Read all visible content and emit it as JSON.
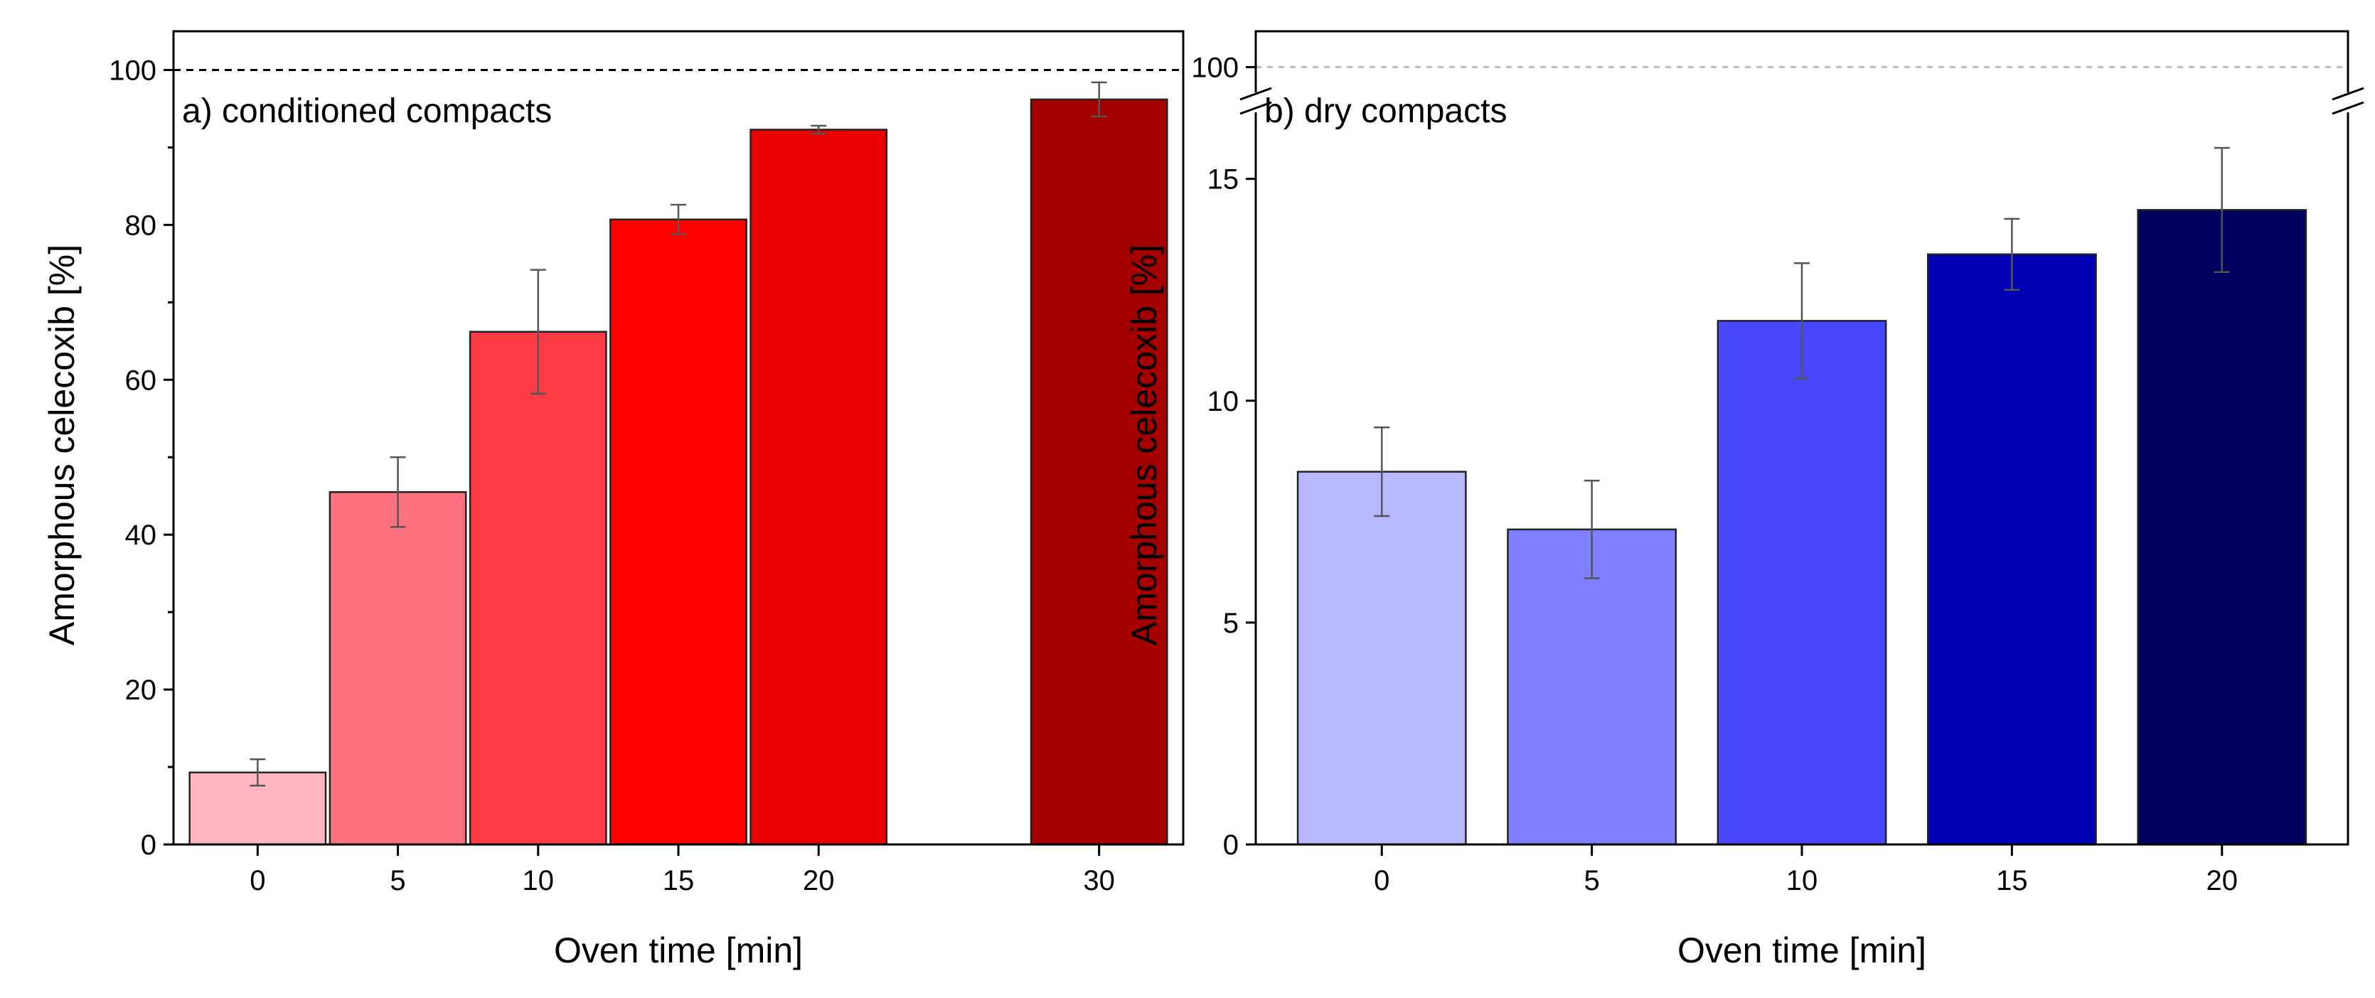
{
  "chart_data": [
    {
      "type": "bar",
      "panel_label": "a) conditioned compacts",
      "xlabel": "Oven time [min]",
      "ylabel": "Amorphous celecoxib [%]",
      "ylim": [
        0,
        105
      ],
      "yticks": [
        0,
        20,
        40,
        60,
        80,
        100
      ],
      "ytick_labels": [
        "0",
        "20",
        "40",
        "60",
        "80",
        "100"
      ],
      "categories": [
        "0",
        "5",
        "10",
        "15",
        "20",
        "30"
      ],
      "category_positions": [
        0,
        1,
        2,
        3,
        4,
        6
      ],
      "xlim": [
        -0.6,
        6.6
      ],
      "values": [
        9.3,
        45.5,
        66.2,
        80.7,
        92.3,
        96.2
      ],
      "errors": [
        1.7,
        4.5,
        8.0,
        1.9,
        0.5,
        2.2
      ],
      "colors": [
        "#ffb6c1",
        "#ff717f",
        "#ff3b45",
        "#ff0000",
        "#ea0000",
        "#a40000"
      ],
      "reference_line": 100
    },
    {
      "type": "bar",
      "panel_label": "b) dry compacts",
      "xlabel": "Oven time [min]",
      "ylabel": "Amorphous celecoxib [%]",
      "ylim": [
        0,
        16.5
      ],
      "broken_axis": true,
      "upper_segment_ylim": [
        99,
        101.5
      ],
      "yticks": [
        0,
        5,
        10,
        15
      ],
      "ytick_labels": [
        "0",
        "5",
        "10",
        "15"
      ],
      "upper_tick": 100,
      "upper_tick_label": "100",
      "categories": [
        "0",
        "5",
        "10",
        "15",
        "20"
      ],
      "category_positions": [
        0,
        1,
        2,
        3,
        4
      ],
      "xlim": [
        -0.6,
        4.6
      ],
      "values": [
        8.4,
        7.1,
        11.8,
        13.3,
        14.3
      ],
      "errors": [
        1.0,
        1.1,
        1.3,
        0.8,
        1.4
      ],
      "colors": [
        "#b8b8ff",
        "#8080ff",
        "#4848ff",
        "#0000b4",
        "#00005e"
      ],
      "reference_line": 100
    }
  ]
}
